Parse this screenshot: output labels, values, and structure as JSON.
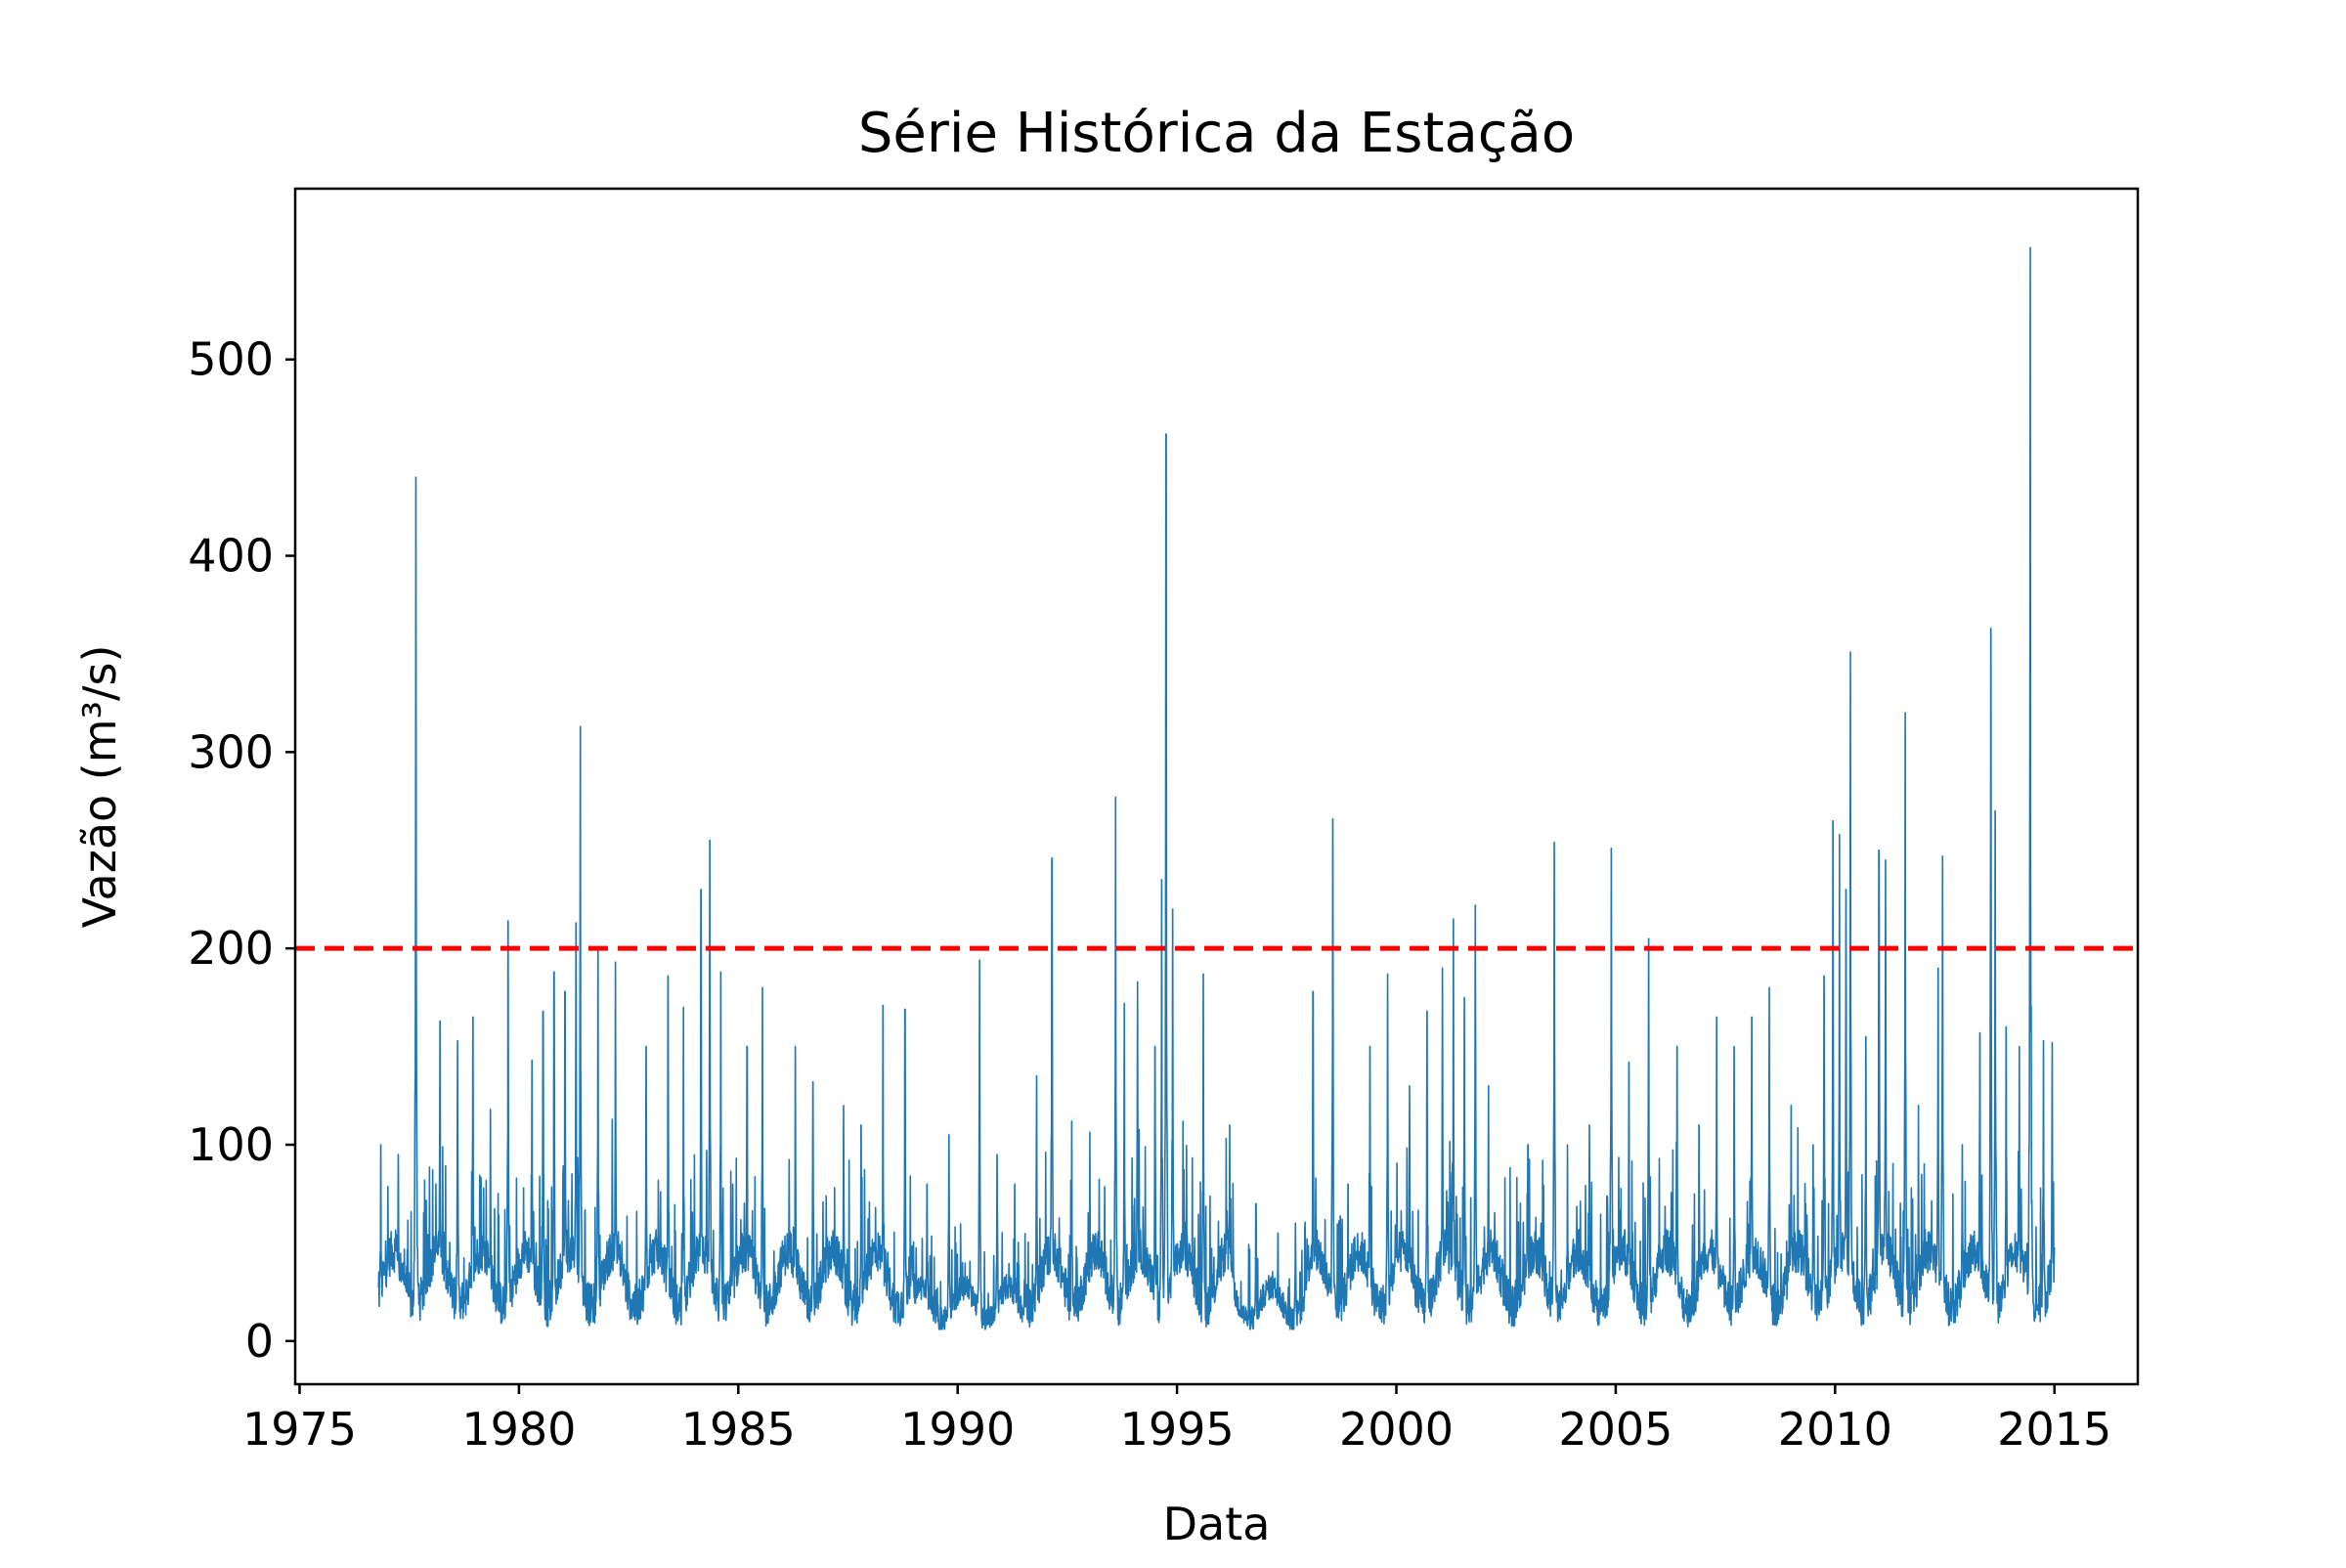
{
  "chart_data": {
    "type": "line",
    "title": "Série Histórica da Estação",
    "xlabel": "Data",
    "ylabel": "Vazão (m³/s)",
    "xlim": [
      1974.9,
      2016.9
    ],
    "ylim": [
      -22,
      587
    ],
    "x_ticks": [
      1975,
      1980,
      1985,
      1990,
      1995,
      2000,
      2005,
      2010,
      2015
    ],
    "x_tick_labels": [
      "1975",
      "1980",
      "1985",
      "1990",
      "1995",
      "2000",
      "2005",
      "2010",
      "2015"
    ],
    "y_ticks": [
      0,
      100,
      200,
      300,
      400,
      500
    ],
    "y_tick_labels": [
      "0",
      "100",
      "200",
      "300",
      "400",
      "500"
    ],
    "grid": false,
    "threshold": {
      "value": 200,
      "color": "#ff0000",
      "style": "dashed"
    },
    "series": [
      {
        "color": "#1f77b4",
        "x_start": 1976.8,
        "x_end": 2015.0,
        "peaks": [
          [
            1976.85,
            100
          ],
          [
            1977.25,
            95
          ],
          [
            1977.65,
            440
          ],
          [
            1978.2,
            163
          ],
          [
            1978.6,
            153
          ],
          [
            1978.95,
            165
          ],
          [
            1979.35,
            118
          ],
          [
            1979.75,
            214
          ],
          [
            1980.3,
            143
          ],
          [
            1980.55,
            168
          ],
          [
            1980.8,
            188
          ],
          [
            1981.05,
            178
          ],
          [
            1981.3,
            213
          ],
          [
            1981.4,
            313
          ],
          [
            1981.8,
            200
          ],
          [
            1982.2,
            193
          ],
          [
            1982.9,
            150
          ],
          [
            1983.4,
            186
          ],
          [
            1983.75,
            170
          ],
          [
            1984.15,
            230
          ],
          [
            1984.35,
            255
          ],
          [
            1984.6,
            188
          ],
          [
            1985.2,
            150
          ],
          [
            1985.55,
            180
          ],
          [
            1986.3,
            150
          ],
          [
            1986.7,
            132
          ],
          [
            1987.4,
            120
          ],
          [
            1987.8,
            110
          ],
          [
            1988.3,
            171
          ],
          [
            1988.8,
            169
          ],
          [
            1989.3,
            80
          ],
          [
            1989.8,
            105
          ],
          [
            1990.5,
            194
          ],
          [
            1990.9,
            95
          ],
          [
            1991.3,
            80
          ],
          [
            1991.8,
            135
          ],
          [
            1992.15,
            246
          ],
          [
            1992.6,
            112
          ],
          [
            1993.6,
            277
          ],
          [
            1993.8,
            172
          ],
          [
            1994.1,
            183
          ],
          [
            1994.5,
            150
          ],
          [
            1994.65,
            235
          ],
          [
            1994.75,
            462
          ],
          [
            1994.9,
            220
          ],
          [
            1995.6,
            187
          ],
          [
            1996.2,
            110
          ],
          [
            1996.8,
            70
          ],
          [
            1997.3,
            55
          ],
          [
            1997.7,
            60
          ],
          [
            1998.1,
            178
          ],
          [
            1998.55,
            266
          ],
          [
            1998.9,
            80
          ],
          [
            1999.4,
            150
          ],
          [
            1999.8,
            187
          ],
          [
            2000.3,
            130
          ],
          [
            2000.7,
            168
          ],
          [
            2001.05,
            190
          ],
          [
            2001.3,
            215
          ],
          [
            2001.55,
            175
          ],
          [
            2001.8,
            222
          ],
          [
            2002.1,
            130
          ],
          [
            2003.0,
            100
          ],
          [
            2003.3,
            60
          ],
          [
            2003.6,
            254
          ],
          [
            2003.9,
            100
          ],
          [
            2004.4,
            110
          ],
          [
            2004.9,
            251
          ],
          [
            2005.3,
            142
          ],
          [
            2005.75,
            205
          ],
          [
            2006.4,
            150
          ],
          [
            2006.9,
            110
          ],
          [
            2007.3,
            165
          ],
          [
            2007.7,
            150
          ],
          [
            2008.1,
            165
          ],
          [
            2008.5,
            180
          ],
          [
            2009.0,
            120
          ],
          [
            2009.5,
            100
          ],
          [
            2009.75,
            186
          ],
          [
            2009.95,
            265
          ],
          [
            2010.1,
            258
          ],
          [
            2010.25,
            230
          ],
          [
            2010.35,
            351
          ],
          [
            2010.7,
            155
          ],
          [
            2011.0,
            250
          ],
          [
            2011.15,
            245
          ],
          [
            2011.6,
            320
          ],
          [
            2011.9,
            120
          ],
          [
            2012.35,
            190
          ],
          [
            2012.45,
            247
          ],
          [
            2012.9,
            100
          ],
          [
            2013.3,
            157
          ],
          [
            2013.55,
            363
          ],
          [
            2013.65,
            270
          ],
          [
            2013.9,
            160
          ],
          [
            2014.2,
            150
          ],
          [
            2014.45,
            557
          ],
          [
            2014.75,
            153
          ],
          [
            2014.95,
            152
          ]
        ]
      }
    ]
  }
}
